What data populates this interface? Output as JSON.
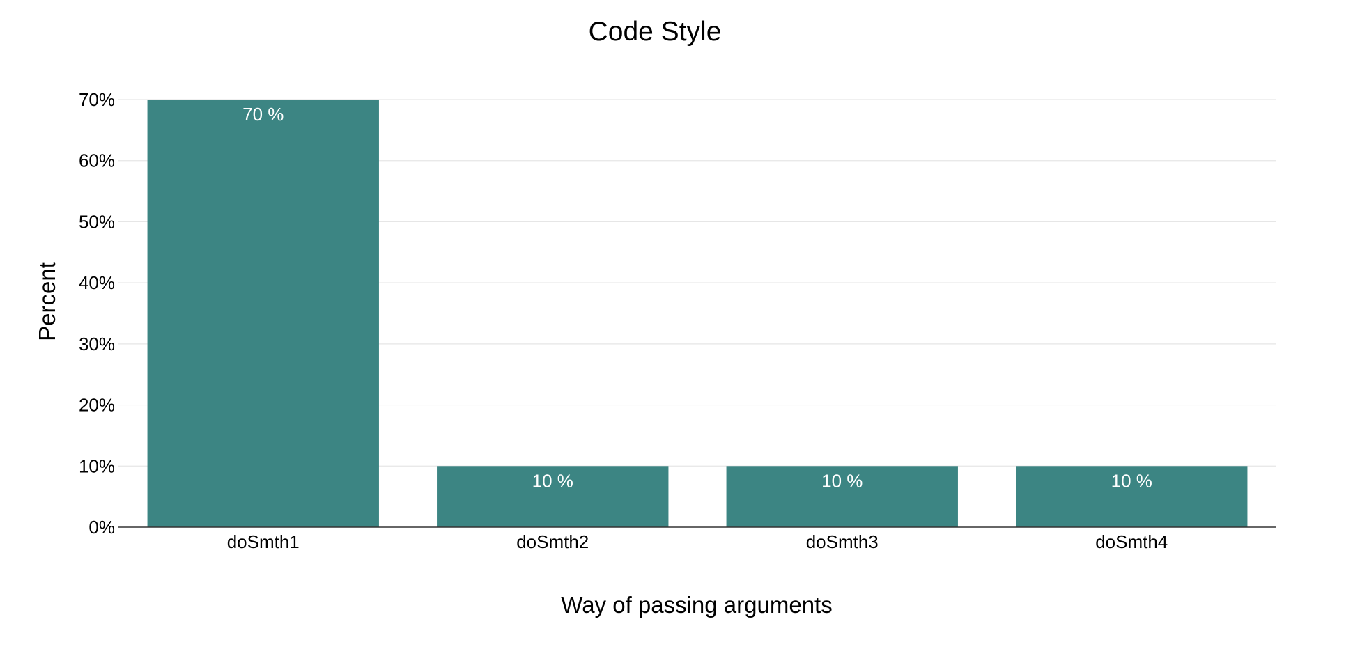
{
  "chart_data": {
    "type": "bar",
    "title": "Code Style",
    "xlabel": "Way of passing arguments",
    "ylabel": "Percent",
    "categories": [
      "doSmth1",
      "doSmth2",
      "doSmth3",
      "doSmth4"
    ],
    "values": [
      70,
      10,
      10,
      10
    ],
    "data_labels": [
      "70 %",
      "10 %",
      "10 %",
      "10 %"
    ],
    "ylim": [
      0,
      70
    ],
    "yticks": [
      0,
      10,
      20,
      30,
      40,
      50,
      60,
      70
    ],
    "ytick_labels": [
      "0%",
      "10%",
      "20%",
      "30%",
      "40%",
      "50%",
      "60%",
      "70%"
    ],
    "grid": true,
    "legend": "none",
    "bar_color": "#3c8583"
  }
}
